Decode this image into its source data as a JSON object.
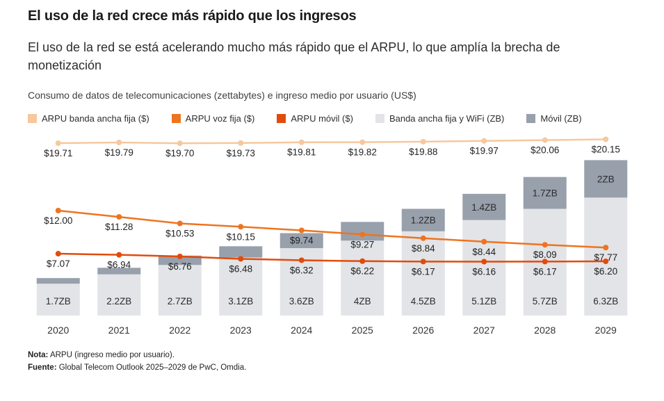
{
  "header": {
    "title": "El uso de la red crece más rápido que los ingresos",
    "subtitle": "El uso de la red se está acelerando mucho más rápido que el ARPU, lo que amplía la brecha de monetización",
    "description": "Consumo de datos de telecomunicaciones (zettabytes) e ingreso medio por usuario (US$)"
  },
  "legend": [
    {
      "label": "ARPU banda ancha fija ($)",
      "color": "#f6c89d"
    },
    {
      "label": "ARPU voz fija ($)",
      "color": "#ee7420"
    },
    {
      "label": "ARPU móvil ($)",
      "color": "#e14b0b"
    },
    {
      "label": "Banda ancha fija y WiFi (ZB)",
      "color": "#e2e4e7"
    },
    {
      "label": "Móvil (ZB)",
      "color": "#98a0ac"
    }
  ],
  "chart_data": {
    "type": "combo-stacked-bar-line",
    "categories": [
      "2020",
      "2021",
      "2022",
      "2023",
      "2024",
      "2025",
      "2026",
      "2027",
      "2028",
      "2029"
    ],
    "bar_series": [
      {
        "name": "Banda ancha fija y WiFi (ZB)",
        "color": "#e2e4e7",
        "values": [
          1.7,
          2.2,
          2.7,
          3.1,
          3.6,
          4,
          4.5,
          5.1,
          5.7,
          6.3
        ],
        "labels": [
          "1.7ZB",
          "2.2ZB",
          "2.7ZB",
          "3.1ZB",
          "3.6ZB",
          "4ZB",
          "4.5ZB",
          "5.1ZB",
          "5.7ZB",
          "6.3ZB"
        ]
      },
      {
        "name": "Móvil (ZB)",
        "color": "#98a0ac",
        "values": [
          0.3,
          0.35,
          0.5,
          0.6,
          0.8,
          1.0,
          1.2,
          1.4,
          1.7,
          2.0
        ],
        "labels": [
          "",
          "",
          "",
          "",
          "",
          "",
          "1.2ZB",
          "1.4ZB",
          "1.7ZB",
          "2ZB"
        ]
      }
    ],
    "line_series": [
      {
        "name": "ARPU banda ancha fija ($)",
        "color": "#f6c89d",
        "values": [
          19.71,
          19.79,
          19.7,
          19.73,
          19.81,
          19.82,
          19.88,
          19.97,
          20.06,
          20.15
        ],
        "labels": [
          "$19.71",
          "$19.79",
          "$19.70",
          "$19.73",
          "$19.81",
          "$19.82",
          "$19.88",
          "$19.97",
          "$20.06",
          "$20.15"
        ]
      },
      {
        "name": "ARPU voz fija ($)",
        "color": "#ee7420",
        "values": [
          12.0,
          11.28,
          10.53,
          10.15,
          9.74,
          9.27,
          8.84,
          8.44,
          8.09,
          7.77
        ],
        "labels": [
          "$12.00",
          "$11.28",
          "$10.53",
          "$10.15",
          "$9.74",
          "$9.27",
          "$8.84",
          "$8.44",
          "$8.09",
          "$7.77"
        ]
      },
      {
        "name": "ARPU móvil ($)",
        "color": "#e14b0b",
        "values": [
          7.07,
          6.94,
          6.76,
          6.48,
          6.32,
          6.22,
          6.17,
          6.16,
          6.17,
          6.2
        ],
        "labels": [
          "$7.07",
          "$6.94",
          "$6.76",
          "$6.48",
          "$6.32",
          "$6.22",
          "$6.17",
          "$6.16",
          "$6.17",
          "$6.20"
        ]
      }
    ],
    "y_dollar_max": 21.3,
    "y_zb_max": 9.95,
    "grid": false,
    "legend_position": "top"
  },
  "footer": {
    "note_label": "Nota:",
    "note_text": "ARPU (ingreso medio por usuario).",
    "source_label": "Fuente:",
    "source_text": "Global Telecom Outlook 2025–2029 de PwC, Omdia."
  }
}
